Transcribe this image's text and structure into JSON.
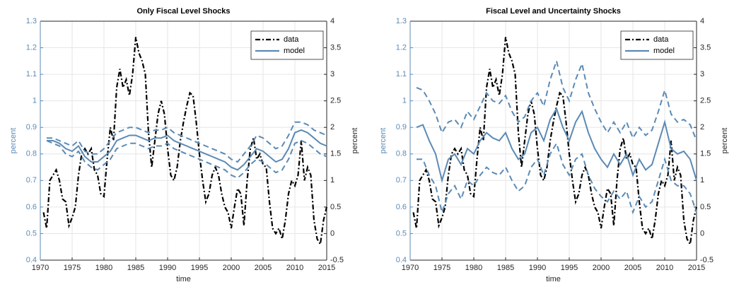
{
  "chart_data": [
    {
      "type": "line",
      "title": "Only Fiscal Level Shocks",
      "xlabel": "time",
      "ylabel": "percent",
      "y2label": "percent",
      "xlim": [
        1970,
        2015
      ],
      "xticks": [
        1970,
        1975,
        1980,
        1985,
        1990,
        1995,
        2000,
        2005,
        2010,
        2015
      ],
      "ylim": [
        0.4,
        1.3
      ],
      "yticks": [
        0.4,
        0.5,
        0.6,
        0.7,
        0.8,
        0.9,
        1,
        1.1,
        1.2,
        1.3
      ],
      "y2lim": [
        -0.5,
        4
      ],
      "y2ticks": [
        -0.5,
        0,
        0.5,
        1,
        1.5,
        2,
        2.5,
        3,
        3.5,
        4
      ],
      "grid": true,
      "legend": "upper right",
      "series": [
        {
          "name": "data",
          "color": "#000000",
          "style": "dashdot",
          "axis": "y2",
          "x": [
            1970.5,
            1971,
            1971.5,
            1972,
            1972.5,
            1973,
            1973.5,
            1974,
            1974.5,
            1975,
            1975.5,
            1976,
            1976.5,
            1977,
            1977.5,
            1978,
            1978.5,
            1979,
            1979.5,
            1980,
            1980.5,
            1981,
            1981.5,
            1982,
            1982.5,
            1983,
            1983.5,
            1984,
            1984.5,
            1985,
            1985.5,
            1986,
            1986.5,
            1987,
            1987.5,
            1988,
            1988.5,
            1989,
            1989.5,
            1990,
            1990.5,
            1991,
            1991.5,
            1992,
            1992.5,
            1993,
            1993.5,
            1994,
            1994.5,
            1995,
            1995.5,
            1996,
            1996.5,
            1997,
            1997.5,
            1998,
            1998.5,
            1999,
            1999.5,
            2000,
            2000.5,
            2001,
            2001.5,
            2002,
            2002.5,
            2003,
            2003.5,
            2004,
            2004.5,
            2005,
            2005.5,
            2006,
            2006.5,
            2007,
            2007.5,
            2008,
            2008.5,
            2009,
            2009.5,
            2010,
            2010.5,
            2011,
            2011.5,
            2012,
            2012.5,
            2013,
            2013.5,
            2014,
            2014.5,
            2015
          ],
          "values": [
            0.4,
            0.1,
            1.0,
            1.1,
            1.2,
            1.0,
            0.65,
            0.6,
            0.15,
            0.3,
            0.5,
            1.1,
            1.5,
            1.6,
            1.5,
            1.6,
            1.2,
            1.1,
            0.75,
            0.7,
            1.4,
            2.0,
            1.75,
            2.75,
            3.1,
            2.75,
            2.9,
            2.6,
            3.0,
            3.7,
            3.4,
            3.25,
            3.0,
            1.9,
            1.25,
            1.75,
            2.25,
            2.5,
            2.25,
            1.6,
            1.1,
            1.0,
            1.25,
            1.75,
            2.1,
            2.4,
            2.65,
            2.6,
            2.1,
            1.5,
            1.0,
            0.6,
            0.75,
            1.1,
            1.25,
            1.1,
            0.75,
            0.5,
            0.4,
            0.1,
            0.5,
            0.85,
            0.75,
            0.15,
            1.0,
            1.6,
            1.8,
            1.4,
            1.5,
            1.3,
            1.25,
            0.6,
            0.1,
            0.0,
            0.1,
            -0.1,
            0.25,
            0.75,
            1.0,
            0.9,
            1.1,
            1.75,
            1.0,
            1.25,
            1.1,
            0.25,
            -0.1,
            -0.2,
            0.25,
            0.5
          ]
        },
        {
          "name": "model",
          "color": "#5b8ab5",
          "style": "solid",
          "x": [
            1971,
            1972,
            1973,
            1974,
            1975,
            1976,
            1977,
            1978,
            1979,
            1980,
            1981,
            1982,
            1983,
            1984,
            1985,
            1986,
            1987,
            1988,
            1989,
            1990,
            1991,
            1992,
            1993,
            1994,
            1995,
            1996,
            1997,
            1998,
            1999,
            2000,
            2001,
            2002,
            2003,
            2004,
            2005,
            2006,
            2007,
            2008,
            2009,
            2010,
            2011,
            2012,
            2013,
            2014,
            2015
          ],
          "values": [
            0.85,
            0.85,
            0.84,
            0.82,
            0.81,
            0.83,
            0.79,
            0.77,
            0.77,
            0.79,
            0.81,
            0.85,
            0.86,
            0.87,
            0.87,
            0.86,
            0.85,
            0.86,
            0.86,
            0.87,
            0.85,
            0.84,
            0.83,
            0.82,
            0.81,
            0.8,
            0.79,
            0.78,
            0.77,
            0.75,
            0.74,
            0.76,
            0.79,
            0.82,
            0.81,
            0.79,
            0.77,
            0.78,
            0.82,
            0.88,
            0.89,
            0.88,
            0.86,
            0.84,
            0.83
          ]
        },
        {
          "color": "#5b8ab5",
          "style": "dashed",
          "x": [
            1971,
            1972,
            1973,
            1974,
            1975,
            1976,
            1977,
            1978,
            1979,
            1980,
            1981,
            1982,
            1983,
            1984,
            1985,
            1986,
            1987,
            1988,
            1989,
            1990,
            1991,
            1992,
            1993,
            1994,
            1995,
            1996,
            1997,
            1998,
            1999,
            2000,
            2001,
            2002,
            2003,
            2004,
            2005,
            2006,
            2007,
            2008,
            2009,
            2010,
            2011,
            2012,
            2013,
            2014,
            2015
          ],
          "values": [
            0.86,
            0.86,
            0.85,
            0.84,
            0.83,
            0.85,
            0.81,
            0.8,
            0.8,
            0.82,
            0.85,
            0.88,
            0.89,
            0.9,
            0.9,
            0.89,
            0.88,
            0.89,
            0.89,
            0.9,
            0.88,
            0.87,
            0.86,
            0.85,
            0.84,
            0.83,
            0.82,
            0.81,
            0.8,
            0.78,
            0.77,
            0.8,
            0.83,
            0.87,
            0.86,
            0.84,
            0.82,
            0.83,
            0.87,
            0.92,
            0.92,
            0.91,
            0.89,
            0.88,
            0.87
          ]
        },
        {
          "color": "#5b8ab5",
          "style": "dashed",
          "x": [
            1971,
            1972,
            1973,
            1974,
            1975,
            1976,
            1977,
            1978,
            1979,
            1980,
            1981,
            1982,
            1983,
            1984,
            1985,
            1986,
            1987,
            1988,
            1989,
            1990,
            1991,
            1992,
            1993,
            1994,
            1995,
            1996,
            1997,
            1998,
            1999,
            2000,
            2001,
            2002,
            2003,
            2004,
            2005,
            2006,
            2007,
            2008,
            2009,
            2010,
            2011,
            2012,
            2013,
            2014,
            2015
          ],
          "values": [
            0.85,
            0.84,
            0.83,
            0.8,
            0.79,
            0.81,
            0.77,
            0.75,
            0.74,
            0.76,
            0.78,
            0.82,
            0.83,
            0.84,
            0.84,
            0.83,
            0.82,
            0.83,
            0.83,
            0.84,
            0.82,
            0.81,
            0.8,
            0.79,
            0.78,
            0.77,
            0.76,
            0.75,
            0.74,
            0.72,
            0.71,
            0.73,
            0.76,
            0.78,
            0.77,
            0.75,
            0.73,
            0.74,
            0.78,
            0.84,
            0.85,
            0.84,
            0.82,
            0.8,
            0.79
          ]
        }
      ]
    },
    {
      "type": "line",
      "title": "Fiscal Level and Uncertainty Shocks",
      "xlabel": "time",
      "ylabel": "percent",
      "y2label": "percent",
      "xlim": [
        1970,
        2015
      ],
      "xticks": [
        1970,
        1975,
        1980,
        1985,
        1990,
        1995,
        2000,
        2005,
        2010,
        2015
      ],
      "ylim": [
        0.4,
        1.3
      ],
      "yticks": [
        0.4,
        0.5,
        0.6,
        0.7,
        0.8,
        0.9,
        1,
        1.1,
        1.2,
        1.3
      ],
      "y2lim": [
        -0.5,
        4
      ],
      "y2ticks": [
        -0.5,
        0,
        0.5,
        1,
        1.5,
        2,
        2.5,
        3,
        3.5,
        4
      ],
      "grid": true,
      "legend": "upper right",
      "series": [
        {
          "name": "data",
          "color": "#000000",
          "style": "dashdot",
          "axis": "y2",
          "x": [
            1970.5,
            1971,
            1971.5,
            1972,
            1972.5,
            1973,
            1973.5,
            1974,
            1974.5,
            1975,
            1975.5,
            1976,
            1976.5,
            1977,
            1977.5,
            1978,
            1978.5,
            1979,
            1979.5,
            1980,
            1980.5,
            1981,
            1981.5,
            1982,
            1982.5,
            1983,
            1983.5,
            1984,
            1984.5,
            1985,
            1985.5,
            1986,
            1986.5,
            1987,
            1987.5,
            1988,
            1988.5,
            1989,
            1989.5,
            1990,
            1990.5,
            1991,
            1991.5,
            1992,
            1992.5,
            1993,
            1993.5,
            1994,
            1994.5,
            1995,
            1995.5,
            1996,
            1996.5,
            1997,
            1997.5,
            1998,
            1998.5,
            1999,
            1999.5,
            2000,
            2000.5,
            2001,
            2001.5,
            2002,
            2002.5,
            2003,
            2003.5,
            2004,
            2004.5,
            2005,
            2005.5,
            2006,
            2006.5,
            2007,
            2007.5,
            2008,
            2008.5,
            2009,
            2009.5,
            2010,
            2010.5,
            2011,
            2011.5,
            2012,
            2012.5,
            2013,
            2013.5,
            2014,
            2014.5,
            2015
          ],
          "values": [
            0.4,
            0.1,
            1.0,
            1.1,
            1.2,
            1.0,
            0.65,
            0.6,
            0.15,
            0.3,
            0.5,
            1.1,
            1.5,
            1.6,
            1.5,
            1.6,
            1.2,
            1.1,
            0.75,
            0.7,
            1.4,
            2.0,
            1.75,
            2.75,
            3.1,
            2.75,
            2.9,
            2.6,
            3.0,
            3.7,
            3.4,
            3.25,
            3.0,
            1.9,
            1.25,
            1.75,
            2.25,
            2.5,
            2.25,
            1.6,
            1.1,
            1.0,
            1.25,
            1.75,
            2.1,
            2.4,
            2.65,
            2.6,
            2.1,
            1.5,
            1.0,
            0.6,
            0.75,
            1.1,
            1.25,
            1.1,
            0.75,
            0.5,
            0.4,
            0.1,
            0.5,
            0.85,
            0.75,
            0.15,
            1.0,
            1.6,
            1.8,
            1.4,
            1.5,
            1.3,
            1.25,
            0.6,
            0.1,
            0.0,
            0.1,
            -0.1,
            0.25,
            0.75,
            1.0,
            0.9,
            1.1,
            1.75,
            1.0,
            1.25,
            1.1,
            0.25,
            -0.1,
            -0.2,
            0.25,
            0.5
          ]
        },
        {
          "name": "model",
          "color": "#5b8ab5",
          "style": "solid",
          "x": [
            1971,
            1972,
            1973,
            1974,
            1975,
            1976,
            1977,
            1978,
            1979,
            1980,
            1981,
            1982,
            1983,
            1984,
            1985,
            1986,
            1987,
            1988,
            1989,
            1990,
            1991,
            1992,
            1993,
            1994,
            1995,
            1996,
            1997,
            1998,
            1999,
            2000,
            2001,
            2002,
            2003,
            2004,
            2005,
            2006,
            2007,
            2008,
            2009,
            2010,
            2011,
            2012,
            2013,
            2014,
            2015
          ],
          "values": [
            0.9,
            0.91,
            0.85,
            0.8,
            0.7,
            0.78,
            0.8,
            0.76,
            0.82,
            0.8,
            0.85,
            0.88,
            0.86,
            0.85,
            0.88,
            0.82,
            0.78,
            0.8,
            0.88,
            0.9,
            0.85,
            0.93,
            0.97,
            0.9,
            0.85,
            0.92,
            0.96,
            0.88,
            0.82,
            0.78,
            0.75,
            0.8,
            0.76,
            0.8,
            0.72,
            0.78,
            0.74,
            0.76,
            0.84,
            0.92,
            0.82,
            0.8,
            0.81,
            0.78,
            0.7
          ]
        },
        {
          "color": "#5b8ab5",
          "style": "dashed",
          "x": [
            1971,
            1972,
            1973,
            1974,
            1975,
            1976,
            1977,
            1978,
            1979,
            1980,
            1981,
            1982,
            1983,
            1984,
            1985,
            1986,
            1987,
            1988,
            1989,
            1990,
            1991,
            1992,
            1993,
            1994,
            1995,
            1996,
            1997,
            1998,
            1999,
            2000,
            2001,
            2002,
            2003,
            2004,
            2005,
            2006,
            2007,
            2008,
            2009,
            2010,
            2011,
            2012,
            2013,
            2014,
            2015
          ],
          "values": [
            1.05,
            1.04,
            1.0,
            0.95,
            0.88,
            0.92,
            0.93,
            0.9,
            0.96,
            0.93,
            0.98,
            1.03,
            1.0,
            0.99,
            1.02,
            0.96,
            0.92,
            0.94,
            1.0,
            1.03,
            0.98,
            1.08,
            1.15,
            1.05,
            1.0,
            1.08,
            1.14,
            1.03,
            0.97,
            0.92,
            0.88,
            0.92,
            0.88,
            0.92,
            0.86,
            0.9,
            0.87,
            0.89,
            0.96,
            1.04,
            0.95,
            0.92,
            0.93,
            0.91,
            0.85
          ]
        },
        {
          "color": "#5b8ab5",
          "style": "dashed",
          "x": [
            1971,
            1972,
            1973,
            1974,
            1975,
            1976,
            1977,
            1978,
            1979,
            1980,
            1981,
            1982,
            1983,
            1984,
            1985,
            1986,
            1987,
            1988,
            1989,
            1990,
            1991,
            1992,
            1993,
            1994,
            1995,
            1996,
            1997,
            1998,
            1999,
            2000,
            2001,
            2002,
            2003,
            2004,
            2005,
            2006,
            2007,
            2008,
            2009,
            2010,
            2011,
            2012,
            2013,
            2014,
            2015
          ],
          "values": [
            0.78,
            0.78,
            0.72,
            0.68,
            0.58,
            0.65,
            0.68,
            0.63,
            0.7,
            0.68,
            0.72,
            0.75,
            0.73,
            0.72,
            0.75,
            0.7,
            0.66,
            0.68,
            0.75,
            0.78,
            0.72,
            0.8,
            0.84,
            0.76,
            0.72,
            0.78,
            0.8,
            0.72,
            0.67,
            0.64,
            0.62,
            0.66,
            0.63,
            0.66,
            0.58,
            0.64,
            0.6,
            0.62,
            0.7,
            0.78,
            0.7,
            0.68,
            0.68,
            0.65,
            0.58
          ]
        }
      ]
    }
  ]
}
